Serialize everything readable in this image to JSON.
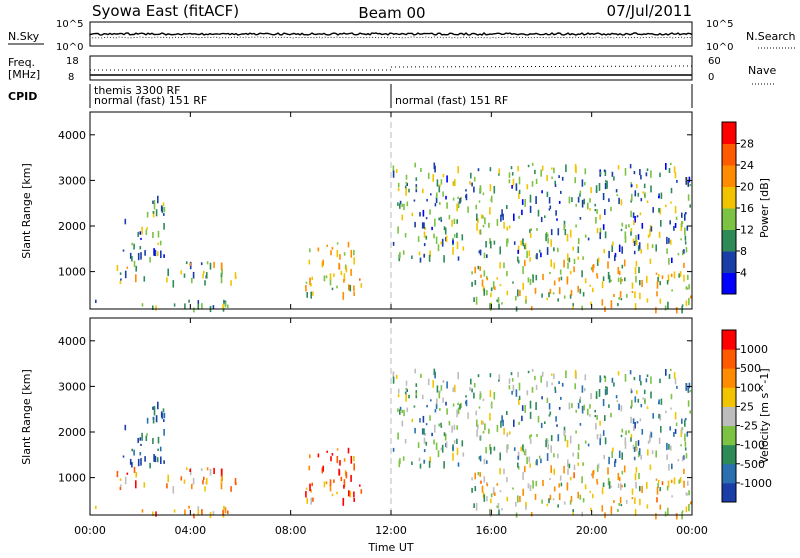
{
  "header": {
    "station": "Syowa East (fitACF)",
    "beam": "Beam 00",
    "date": "07/Jul/2011"
  },
  "strips": {
    "nsky": {
      "label": "N.Sky",
      "ticks": [
        "10^5",
        "10^0"
      ]
    },
    "nsearch": {
      "label": "N.Search",
      "ticks": [
        "10^5",
        "10^0"
      ]
    },
    "freq": {
      "label_top": "Freq.",
      "label_bottom": "[MHz]",
      "ticks": [
        "18",
        "8"
      ]
    },
    "nave": {
      "label": "Nave",
      "ticks": [
        "60",
        "0"
      ]
    },
    "cpid": {
      "label": "CPID",
      "segments": [
        {
          "line1": "themis 3300 RF",
          "line2": "normal (fast) 151 RF"
        },
        {
          "line1": "",
          "line2": "normal (fast) 151 RF"
        }
      ]
    }
  },
  "time_axis": {
    "title": "Time UT",
    "ticks": [
      "00:00",
      "04:00",
      "08:00",
      "12:00",
      "16:00",
      "20:00",
      "00:00"
    ]
  },
  "chart_data": [
    {
      "type": "heatmap",
      "name": "power",
      "ylabel": "Slant Range [km]",
      "xlabel": "Time UT",
      "xlim_hours": [
        0,
        24
      ],
      "ylim": [
        180,
        4500
      ],
      "yticks": [
        "4000",
        "3000",
        "2000",
        "1000"
      ],
      "colorbar": {
        "label": "Power [dB]",
        "ticks": [
          "28",
          "24",
          "20",
          "16",
          "12",
          "8",
          "4"
        ],
        "colors": [
          "#0000ff",
          "#1a3ea8",
          "#2e8b57",
          "#7cc243",
          "#f2c400",
          "#ff8c00",
          "#ff5a00",
          "#ff0000"
        ]
      },
      "echo_regions": [
        {
          "t0": 0.2,
          "t1": 5.8,
          "r0": 200,
          "r1": 400,
          "level": 0.35
        },
        {
          "t0": 0.8,
          "t1": 5.8,
          "r0": 800,
          "r1": 1250,
          "level": 0.45
        },
        {
          "t0": 1.3,
          "t1": 3.0,
          "r0": 1300,
          "r1": 2700,
          "level": 0.3
        },
        {
          "t0": 8.5,
          "t1": 10.8,
          "r0": 500,
          "r1": 1700,
          "level": 0.55
        },
        {
          "t0": 15.2,
          "t1": 24.0,
          "r0": 200,
          "r1": 1300,
          "level": 0.5
        },
        {
          "t0": 12.0,
          "t1": 24.0,
          "r0": 1300,
          "r1": 3400,
          "level": 0.35
        }
      ]
    },
    {
      "type": "heatmap",
      "name": "velocity",
      "ylabel": "Slant Range [km]",
      "xlabel": "Time UT",
      "xlim_hours": [
        0,
        24
      ],
      "ylim": [
        180,
        4500
      ],
      "yticks": [
        "4000",
        "3000",
        "2000",
        "1000"
      ],
      "colorbar": {
        "label": "Velocity [m s^-1]",
        "ticks": [
          "1000",
          "500",
          "100",
          "25",
          "-25",
          "-100",
          "-500",
          "-1000"
        ],
        "colors": [
          "#1a3ea8",
          "#2a6fb0",
          "#2e8b57",
          "#7cc243",
          "#bdbdbd",
          "#f2c400",
          "#ff8c00",
          "#ff5a00",
          "#ff0000"
        ]
      },
      "echo_regions": [
        {
          "t0": 0.2,
          "t1": 5.8,
          "r0": 200,
          "r1": 400,
          "level": 0.7
        },
        {
          "t0": 0.8,
          "t1": 5.8,
          "r0": 800,
          "r1": 1250,
          "level": 0.75
        },
        {
          "t0": 1.3,
          "t1": 3.0,
          "r0": 1300,
          "r1": 2700,
          "level": 0.1
        },
        {
          "t0": 8.5,
          "t1": 10.8,
          "r0": 500,
          "r1": 1700,
          "level": 0.8
        },
        {
          "t0": 15.2,
          "t1": 24.0,
          "r0": 200,
          "r1": 1300,
          "level": 0.55
        },
        {
          "t0": 12.0,
          "t1": 24.0,
          "r0": 1300,
          "r1": 3400,
          "level": 0.35
        }
      ]
    }
  ]
}
